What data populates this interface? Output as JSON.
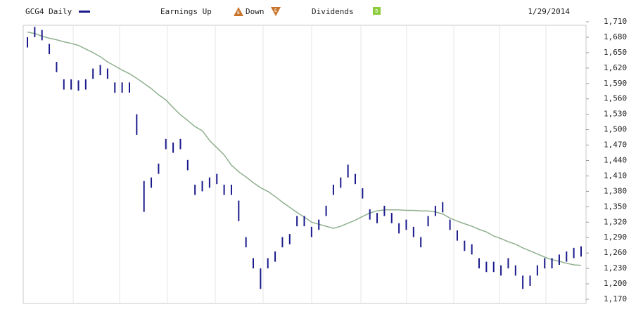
{
  "chart_data": {
    "type": "hl-bar",
    "date": "1/29/2014",
    "legend_items": {
      "earnings_up": "Earnings Up",
      "earnings_up_icon": "E",
      "down": "Down",
      "down_icon": "E",
      "dividends": "Dividends",
      "dividends_icon": "D"
    },
    "ylim": [
      1170,
      1710
    ],
    "yticks": [
      {
        "value": 1170,
        "label": "1,170"
      },
      {
        "value": 1200,
        "label": "1,200"
      },
      {
        "value": 1230,
        "label": "1,230"
      },
      {
        "value": 1260,
        "label": "1,260"
      },
      {
        "value": 1290,
        "label": "1,290"
      },
      {
        "value": 1320,
        "label": "1,320"
      },
      {
        "value": 1350,
        "label": "1,350"
      },
      {
        "value": 1380,
        "label": "1,380"
      },
      {
        "value": 1410,
        "label": "1,410"
      },
      {
        "value": 1440,
        "label": "1,440"
      },
      {
        "value": 1470,
        "label": "1,470"
      },
      {
        "value": 1500,
        "label": "1,500"
      },
      {
        "value": 1530,
        "label": "1,530"
      },
      {
        "value": 1560,
        "label": "1,560"
      },
      {
        "value": 1590,
        "label": "1,590"
      },
      {
        "value": 1620,
        "label": "1,620"
      },
      {
        "value": 1650,
        "label": "1,650"
      },
      {
        "value": 1680,
        "label": "1,680"
      },
      {
        "value": 1710,
        "label": "1,710"
      }
    ],
    "series": [
      {
        "name": "GCG4 Daily",
        "color": "#1a1a8c",
        "high": [
          1680,
          1700,
          1694,
          1667,
          1632,
          1598,
          1598,
          1596,
          1598,
          1619,
          1626,
          1619,
          1592,
          1592,
          1592,
          1530,
          1400,
          1407,
          1434,
          1482,
          1475,
          1482,
          1441,
          1393,
          1400,
          1407,
          1414,
          1393,
          1393,
          1362,
          1291,
          1250,
          1230,
          1250,
          1263,
          1291,
          1297,
          1332,
          1332,
          1311,
          1325,
          1352,
          1393,
          1407,
          1432,
          1414,
          1386,
          1345,
          1338,
          1352,
          1338,
          1318,
          1325,
          1311,
          1291,
          1332,
          1352,
          1359,
          1325,
          1304,
          1284,
          1277,
          1250,
          1243,
          1243,
          1236,
          1250,
          1236,
          1216,
          1216,
          1236,
          1250,
          1250,
          1257,
          1263,
          1270,
          1273
        ],
        "low": [
          1660,
          1680,
          1674,
          1647,
          1612,
          1578,
          1578,
          1576,
          1578,
          1599,
          1606,
          1599,
          1572,
          1572,
          1572,
          1490,
          1340,
          1387,
          1414,
          1462,
          1455,
          1462,
          1421,
          1373,
          1380,
          1387,
          1394,
          1373,
          1373,
          1322,
          1271,
          1230,
          1190,
          1230,
          1243,
          1271,
          1277,
          1312,
          1312,
          1291,
          1305,
          1332,
          1373,
          1387,
          1407,
          1394,
          1366,
          1325,
          1318,
          1332,
          1318,
          1298,
          1305,
          1291,
          1271,
          1312,
          1332,
          1339,
          1305,
          1284,
          1264,
          1257,
          1230,
          1223,
          1223,
          1216,
          1230,
          1216,
          1190,
          1196,
          1216,
          1230,
          1230,
          1237,
          1243,
          1250,
          1253
        ]
      },
      {
        "color": "#8fb08f",
        "values": [
          1690,
          1687,
          1682,
          1678,
          1675,
          1671,
          1668,
          1664,
          1657,
          1650,
          1642,
          1632,
          1624,
          1616,
          1609,
          1600,
          1590,
          1580,
          1568,
          1558,
          1543,
          1529,
          1518,
          1506,
          1498,
          1479,
          1465,
          1451,
          1431,
          1418,
          1408,
          1397,
          1387,
          1380,
          1370,
          1359,
          1349,
          1339,
          1330,
          1320,
          1316,
          1312,
          1308,
          1312,
          1318,
          1324,
          1331,
          1338,
          1342,
          1344,
          1344,
          1344,
          1343,
          1343,
          1342,
          1342,
          1340,
          1336,
          1328,
          1322,
          1317,
          1312,
          1306,
          1301,
          1293,
          1288,
          1282,
          1277,
          1270,
          1264,
          1258,
          1252,
          1247,
          1244,
          1240,
          1237,
          1236
        ]
      }
    ]
  }
}
